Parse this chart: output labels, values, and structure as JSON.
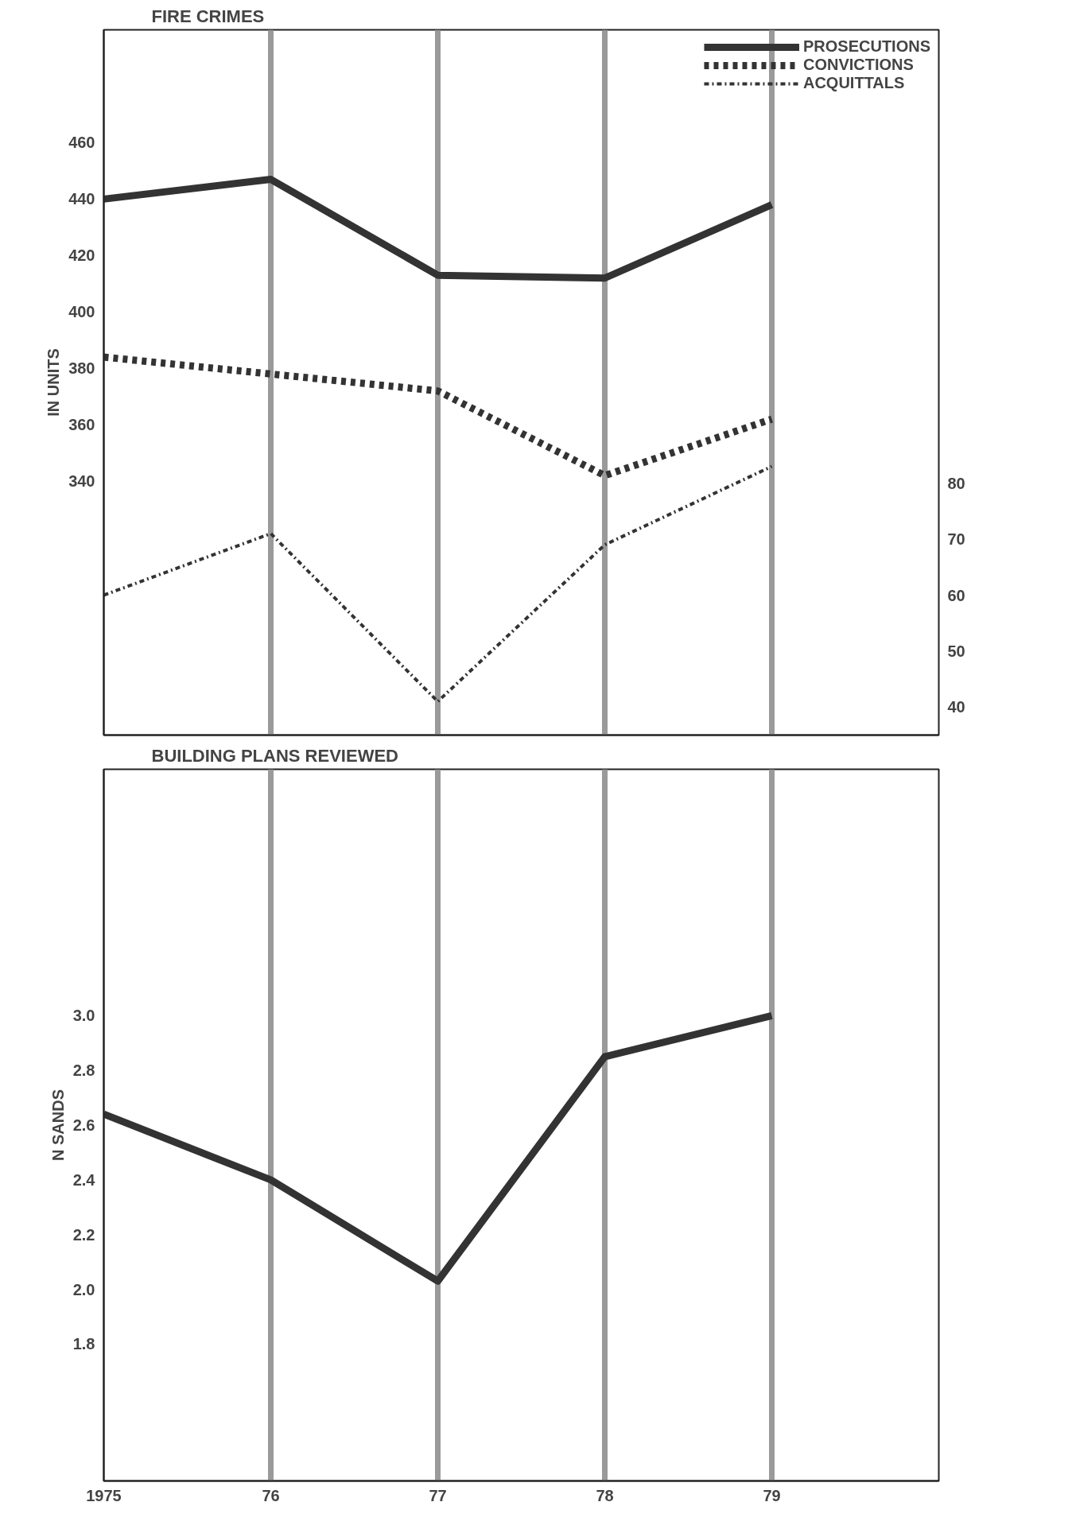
{
  "chart_data": [
    {
      "type": "line",
      "title": "FIRE CRIMES",
      "ylabel": "IN UNITS",
      "x": [
        1975,
        1976,
        1977,
        1978,
        1979
      ],
      "xlim": [
        1975,
        1980
      ],
      "xticks": [
        1975,
        1976,
        1977,
        1978,
        1979
      ],
      "ylim": [
        250,
        500
      ],
      "yticks": [
        340,
        360,
        380,
        400,
        420,
        440,
        460
      ],
      "y2lim": [
        35,
        161
      ],
      "y2ticks": [
        40,
        50,
        60,
        70,
        80
      ],
      "tick_labels": "y",
      "grid": "x",
      "legend": "top right",
      "marker": "none",
      "series": [
        {
          "name": "PROSECUTIONS",
          "color": "#333333",
          "line_style": "solid",
          "values": [
            440,
            447,
            413,
            412,
            438
          ]
        },
        {
          "name": "CONVICTIONS",
          "color": "#333333",
          "line_style": "dashed",
          "values": [
            384,
            378,
            372,
            342,
            362
          ]
        },
        {
          "name": "ACQUITTALS",
          "color": "#333333",
          "line_style": "dashdot",
          "axis": "y2",
          "values": [
            60,
            71,
            41,
            69,
            83
          ]
        }
      ]
    },
    {
      "type": "line",
      "title": "BUILDING PLANS REVIEWED",
      "ylabel": "N SANDS",
      "x": [
        1975,
        1976,
        1977,
        1978,
        1979
      ],
      "xlim": [
        1975,
        1980
      ],
      "xticks": [
        {
          "value": 1975,
          "label": "1975"
        },
        {
          "value": 1976,
          "label": "76"
        },
        {
          "value": 1977,
          "label": "77"
        },
        {
          "value": 1978,
          "label": "78"
        },
        {
          "value": 1979,
          "label": "79"
        }
      ],
      "ylim": [
        1.3,
        3.9
      ],
      "yticks": [
        1.8,
        {
          "value": 2.0,
          "label": "2.0"
        },
        2.2,
        2.4,
        2.6,
        2.8,
        {
          "value": 3.0,
          "label": "3.0"
        }
      ],
      "grid": "x",
      "marker": "none",
      "series": [
        {
          "color": "#333333",
          "line_style": "solid",
          "values": [
            2.64,
            2.4,
            2.03,
            2.85,
            3.0
          ]
        }
      ]
    }
  ]
}
